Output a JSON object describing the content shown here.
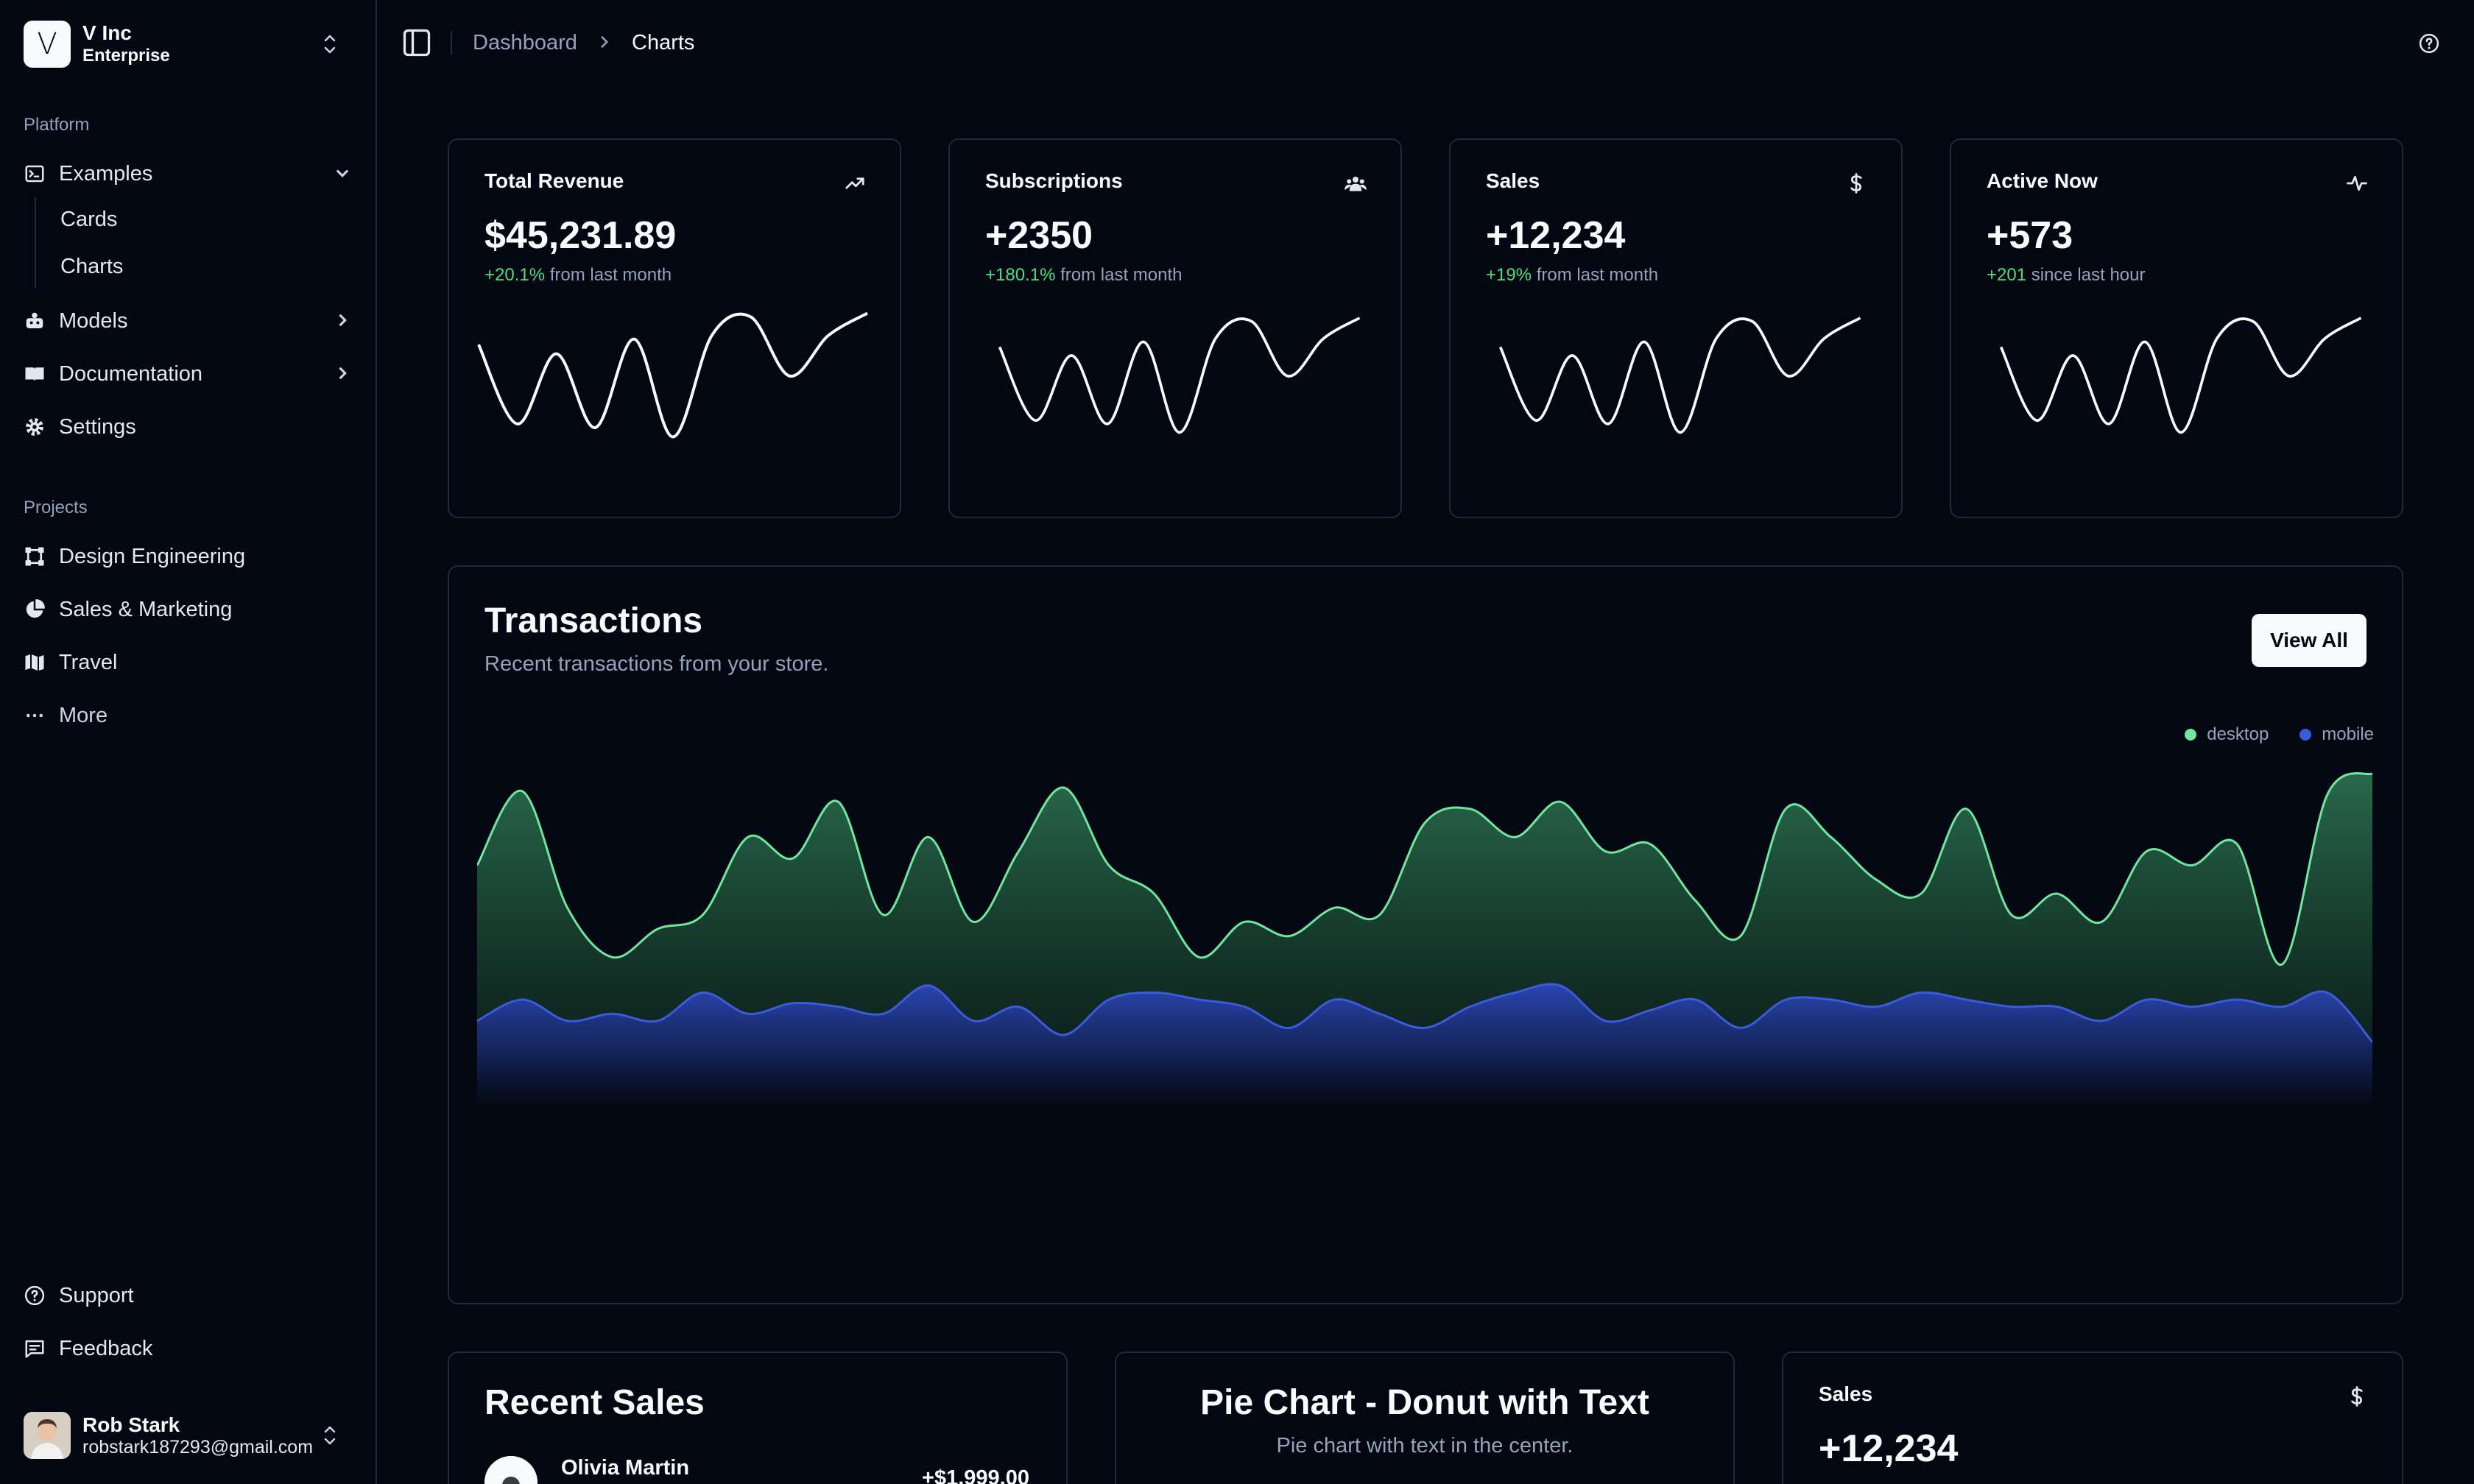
{
  "team": {
    "logo": "V",
    "name": "V Inc",
    "plan": "Enterprise"
  },
  "sidebar": {
    "platform_label": "Platform",
    "platform": [
      {
        "label": "Examples",
        "icon": "terminal-icon",
        "expanded": true
      },
      {
        "label": "Models",
        "icon": "bot-icon"
      },
      {
        "label": "Documentation",
        "icon": "book-icon"
      },
      {
        "label": "Settings",
        "icon": "gear-icon"
      }
    ],
    "examples_sub": [
      "Cards",
      "Charts"
    ],
    "projects_label": "Projects",
    "projects": [
      {
        "label": "Design Engineering",
        "icon": "frame-icon"
      },
      {
        "label": "Sales & Marketing",
        "icon": "pie-chart-icon"
      },
      {
        "label": "Travel",
        "icon": "map-icon"
      }
    ],
    "more": "More",
    "support": "Support",
    "feedback": "Feedback"
  },
  "user": {
    "name": "Rob Stark",
    "email": "robstark187293@gmail.com"
  },
  "breadcrumb": {
    "parent": "Dashboard",
    "current": "Charts"
  },
  "stats": [
    {
      "title": "Total Revenue",
      "value": "$45,231.89",
      "pct": "+20.1%",
      "suffix": "from last month",
      "icon": "trending-up-icon"
    },
    {
      "title": "Subscriptions",
      "value": "+2350",
      "pct": "+180.1%",
      "suffix": "from last month",
      "icon": "users-icon"
    },
    {
      "title": "Sales",
      "value": "+12,234",
      "pct": "+19%",
      "suffix": "from last month",
      "icon": "dollar-icon"
    },
    {
      "title": "Active Now",
      "value": "+573",
      "pct": "+201",
      "suffix": "since last hour",
      "icon": "activity-icon"
    }
  ],
  "transactions": {
    "title": "Transactions",
    "subtitle": "Recent transactions from your store.",
    "view_all": "View All",
    "legend": [
      "desktop",
      "mobile"
    ],
    "colors": {
      "desktop": "#6ee7a0",
      "mobile": "#3b5bdb"
    }
  },
  "recent_sales": {
    "title": "Recent Sales",
    "rows": [
      {
        "name": "Olivia Martin",
        "amount": "+$1,999.00"
      }
    ]
  },
  "pie": {
    "title": "Pie Chart - Donut with Text",
    "subtitle": "Pie chart with text in the center."
  },
  "sales_card": {
    "title": "Sales",
    "value": "+12,234",
    "icon": "dollar-icon"
  },
  "chart_data": [
    {
      "type": "line",
      "series": [
        {
          "values": [
            55,
            12,
            50,
            10,
            58,
            5,
            60,
            70,
            38,
            60,
            72
          ]
        }
      ]
    },
    {
      "type": "area",
      "series": [
        {
          "name": "desktop",
          "values": [
            340,
            445,
            280,
            210,
            250,
            270,
            380,
            350,
            430,
            270,
            380,
            260,
            360,
            450,
            340,
            300,
            210,
            260,
            240,
            280,
            270,
            400,
            420,
            380,
            430,
            360,
            370,
            290,
            240,
            420,
            380,
            320,
            300,
            420,
            270,
            300,
            260,
            360,
            340,
            370,
            200,
            440,
            470
          ]
        },
        {
          "name": "mobile",
          "values": [
            120,
            150,
            120,
            130,
            120,
            160,
            130,
            145,
            140,
            130,
            170,
            120,
            140,
            100,
            150,
            160,
            150,
            140,
            110,
            150,
            130,
            110,
            140,
            160,
            170,
            120,
            135,
            150,
            110,
            150,
            150,
            140,
            160,
            150,
            140,
            140,
            120,
            150,
            140,
            150,
            140,
            160,
            90
          ]
        }
      ]
    }
  ]
}
